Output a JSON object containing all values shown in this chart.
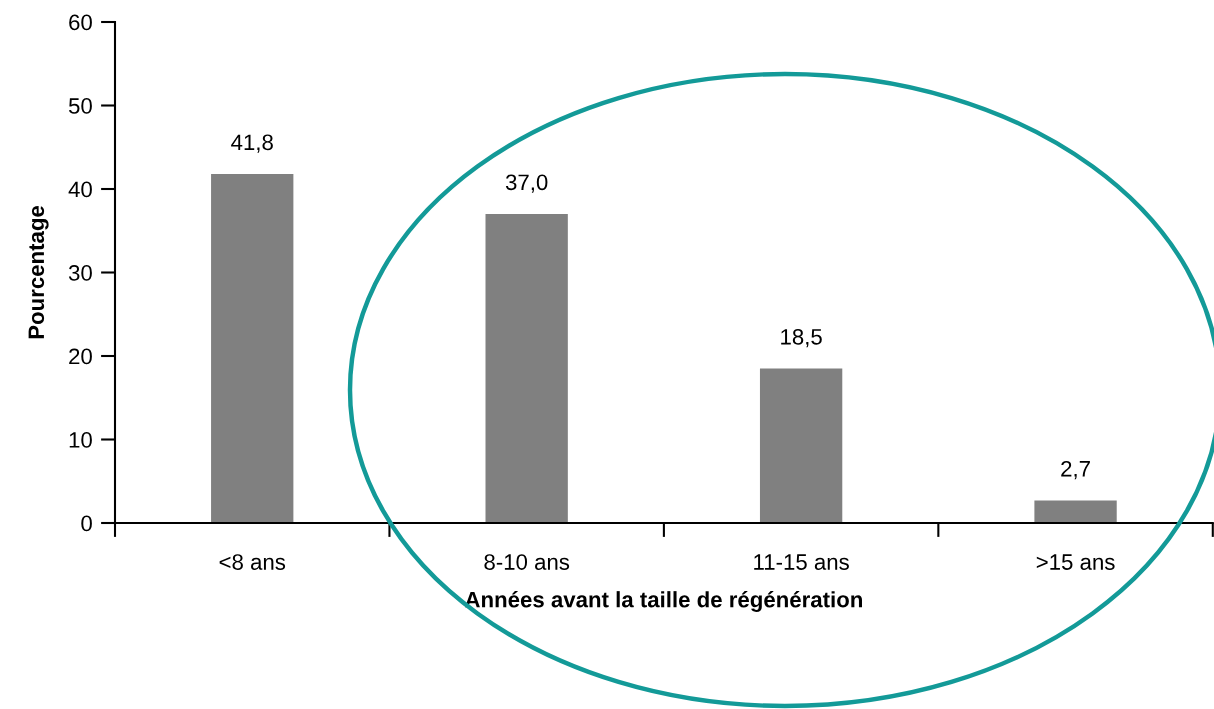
{
  "chart_data": {
    "type": "bar",
    "xlabel": "Années avant la taille de régénération",
    "ylabel": "Pourcentage",
    "categories": [
      "<8 ans",
      "8-10 ans",
      "11-15 ans",
      ">15 ans"
    ],
    "values": [
      41.8,
      37.0,
      18.5,
      2.7
    ],
    "color": "#808080",
    "value_labels": [
      "41,8",
      "37,0",
      "18,5",
      "2,7"
    ],
    "ylim": [
      0,
      60
    ],
    "yticks": [
      0,
      10,
      20,
      30,
      40,
      50,
      60
    ]
  }
}
